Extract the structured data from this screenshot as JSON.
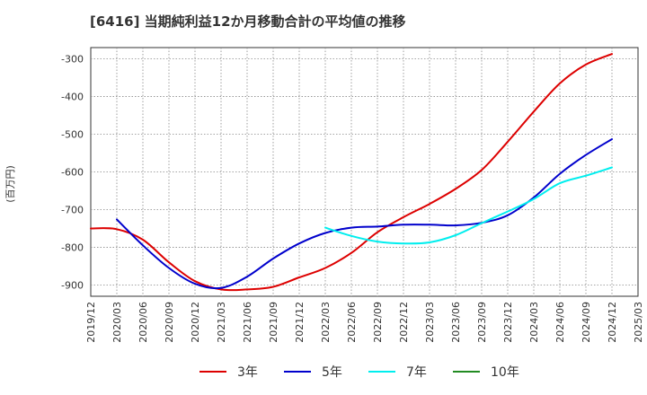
{
  "chart_data": {
    "type": "line",
    "title": "[6416]  当期純利益12か月移動合計の平均値の推移",
    "ylabel": "(百万円)",
    "xlabel": "",
    "ylim": [
      -930,
      -270
    ],
    "yticks": [
      -300,
      -400,
      -500,
      -600,
      -700,
      -800,
      -900
    ],
    "xticks": [
      "2019/12",
      "2020/03",
      "2020/06",
      "2020/09",
      "2020/12",
      "2021/03",
      "2021/06",
      "2021/09",
      "2021/12",
      "2022/03",
      "2022/06",
      "2022/09",
      "2022/12",
      "2023/03",
      "2023/06",
      "2023/09",
      "2023/12",
      "2024/03",
      "2024/06",
      "2024/09",
      "2024/12",
      "2025/03"
    ],
    "grid": true,
    "legend_position": "bottom",
    "series": [
      {
        "name": "3年",
        "color": "#dd0000",
        "x": [
          "2019/12",
          "2020/03",
          "2020/06",
          "2020/09",
          "2020/12",
          "2021/03",
          "2021/06",
          "2021/09",
          "2021/12",
          "2022/03",
          "2022/06",
          "2022/09",
          "2022/12",
          "2023/03",
          "2023/06",
          "2023/09",
          "2023/12",
          "2024/03",
          "2024/06",
          "2024/09",
          "2024/12"
        ],
        "values": [
          -750,
          -752,
          -780,
          -840,
          -890,
          -912,
          -912,
          -905,
          -880,
          -855,
          -815,
          -760,
          -720,
          -685,
          -645,
          -595,
          -520,
          -440,
          -365,
          -315,
          -287
        ]
      },
      {
        "name": "5年",
        "color": "#0000cc",
        "x": [
          "2020/03",
          "2020/06",
          "2020/09",
          "2020/12",
          "2021/03",
          "2021/06",
          "2021/09",
          "2021/12",
          "2022/03",
          "2022/06",
          "2022/09",
          "2022/12",
          "2023/03",
          "2023/06",
          "2023/09",
          "2023/12",
          "2024/03",
          "2024/06",
          "2024/09",
          "2024/12"
        ],
        "values": [
          -726,
          -795,
          -855,
          -897,
          -908,
          -878,
          -830,
          -790,
          -762,
          -748,
          -745,
          -740,
          -740,
          -742,
          -735,
          -715,
          -668,
          -605,
          -555,
          -513
        ]
      },
      {
        "name": "7年",
        "color": "#00eeee",
        "x": [
          "2022/03",
          "2022/06",
          "2022/09",
          "2022/12",
          "2023/03",
          "2023/06",
          "2023/09",
          "2023/12",
          "2024/03",
          "2024/06",
          "2024/09",
          "2024/12"
        ],
        "values": [
          -748,
          -770,
          -785,
          -790,
          -787,
          -768,
          -736,
          -705,
          -672,
          -630,
          -610,
          -588
        ]
      },
      {
        "name": "10年",
        "color": "#228b22",
        "x": [],
        "values": []
      }
    ]
  }
}
